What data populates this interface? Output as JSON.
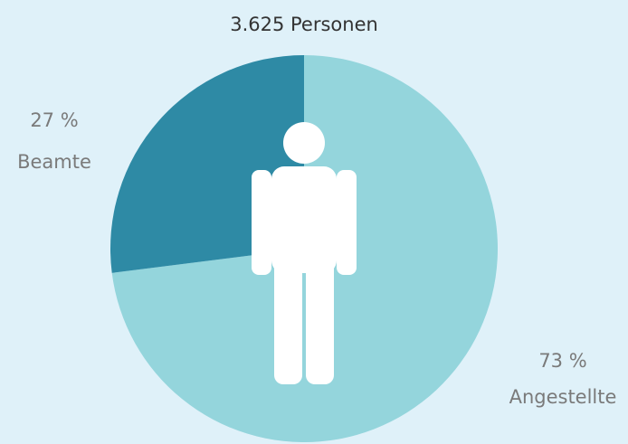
{
  "chart_data": {
    "type": "pie",
    "title": "3.625 Personen",
    "categories": [
      "Angestellte",
      "Beamte"
    ],
    "values": [
      73,
      27
    ],
    "value_labels": [
      "73 %",
      "27 %"
    ],
    "colors": [
      "#94d5dc",
      "#2e8aa5"
    ]
  }
}
